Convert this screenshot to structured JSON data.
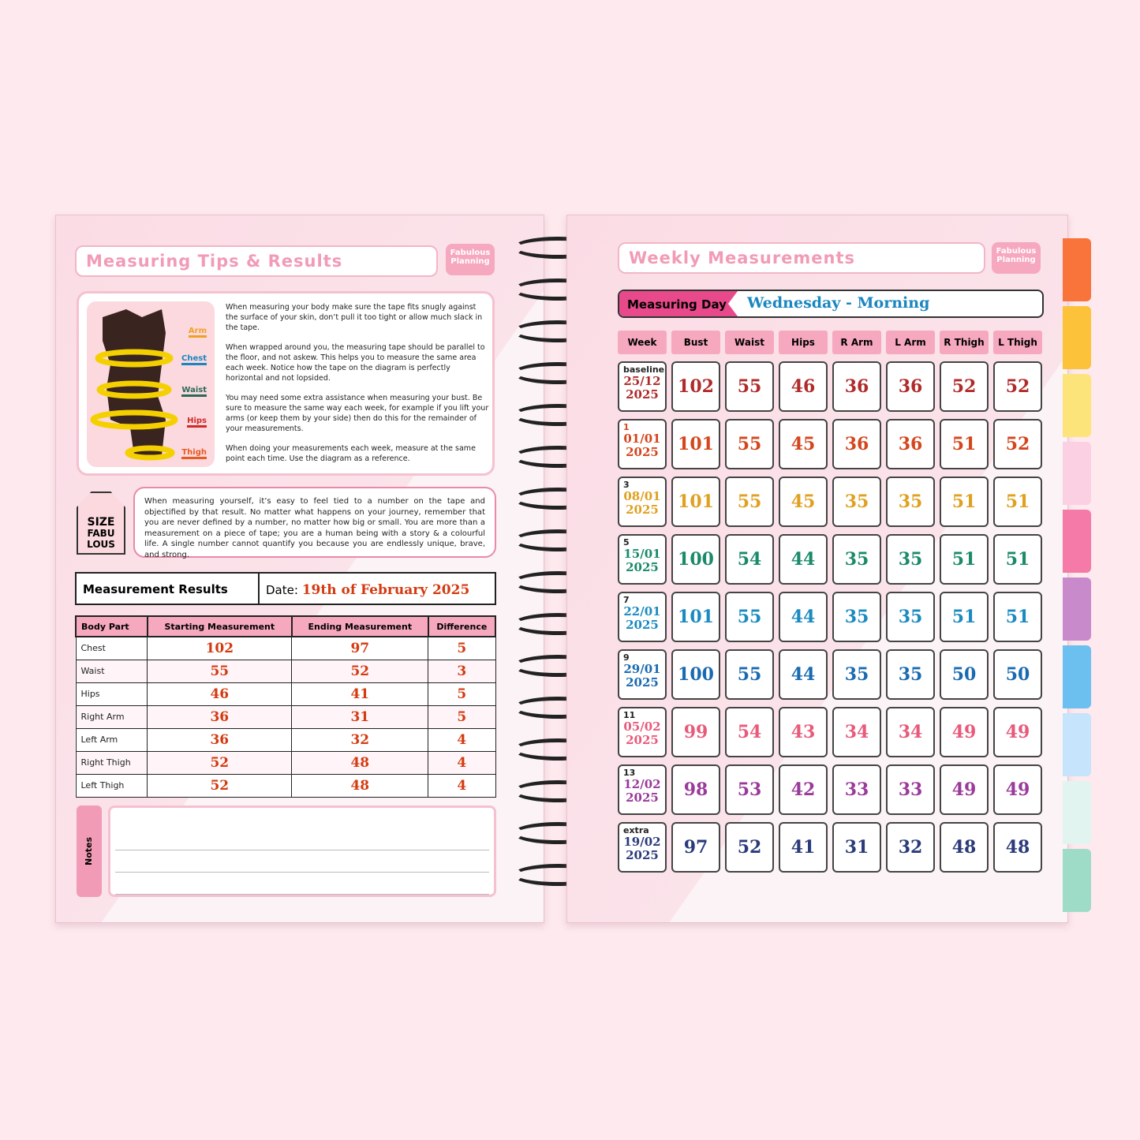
{
  "left": {
    "title": "Measuring Tips & Results",
    "logo": "Fabulous Planning",
    "figure_labels": [
      "Arm",
      "Chest",
      "Waist",
      "Hips",
      "Thigh"
    ],
    "figure_label_colors": [
      "#f0a020",
      "#1a86c0",
      "#2a6a5a",
      "#d02a2a",
      "#e85a20"
    ],
    "tips": [
      "When measuring your body make sure the tape fits snugly against the surface of your skin, don’t pull it too tight or allow much slack in the tape.",
      "When wrapped around you, the measuring tape should be parallel to the floor, and not askew. This helps you to measure the same area each week. Notice how the tape on the diagram is perfectly horizontal and not lopsided.",
      "You may need some extra assistance when measuring your bust. Be sure to measure the same way each week, for example if you lift your arms (or keep them by your side) then do this for the remainder of your measurements.",
      "When doing your measurements each week, measure at the same point each time. Use the diagram as a reference."
    ],
    "tag": {
      "line1": "SIZE",
      "line2": "FABU",
      "line3": "LOUS"
    },
    "quote": "When measuring yourself, it’s easy to feel tied to a number on the tape and objectified by that result. No matter what happens on your journey, remember that you are never defined by a number, no matter how big or small. You are more than a measurement on a piece of tape; you are a human being with a story & a colourful life. A single number cannot quantify you because you are endlessly unique, brave, and strong.",
    "results": {
      "label": "Measurement Results",
      "date_label": "Date:",
      "date_value": "19th of February 2025"
    },
    "table": {
      "headers": [
        "Body Part",
        "Starting Measurement",
        "Ending Measurement",
        "Difference"
      ],
      "rows": [
        [
          "Chest",
          "102",
          "97",
          "5"
        ],
        [
          "Waist",
          "55",
          "52",
          "3"
        ],
        [
          "Hips",
          "46",
          "41",
          "5"
        ],
        [
          "Right Arm",
          "36",
          "31",
          "5"
        ],
        [
          "Left Arm",
          "36",
          "32",
          "4"
        ],
        [
          "Right Thigh",
          "52",
          "48",
          "4"
        ],
        [
          "Left Thigh",
          "52",
          "48",
          "4"
        ]
      ]
    },
    "notes_label": "Notes"
  },
  "right": {
    "title": "Weekly Measurements",
    "logo": "Fabulous Planning",
    "measuring_day_label": "Measuring Day",
    "measuring_day_value": "Wednesday - Morning",
    "headers": [
      "Week",
      "Bust",
      "Waist",
      "Hips",
      "R Arm",
      "L Arm",
      "R Thigh",
      "L Thigh"
    ],
    "rows": [
      {
        "week": "baseline",
        "date": "25/12",
        "year": "2025",
        "values": [
          "102",
          "55",
          "46",
          "36",
          "36",
          "52",
          "52"
        ],
        "color": "#b02a2a"
      },
      {
        "week": "1",
        "date": "01/01",
        "year": "2025",
        "values": [
          "101",
          "55",
          "45",
          "36",
          "36",
          "51",
          "52"
        ],
        "color": "#d4461c"
      },
      {
        "week": "3",
        "date": "08/01",
        "year": "2025",
        "values": [
          "101",
          "55",
          "45",
          "35",
          "35",
          "51",
          "51"
        ],
        "color": "#e0a020"
      },
      {
        "week": "5",
        "date": "15/01",
        "year": "2025",
        "values": [
          "100",
          "54",
          "44",
          "35",
          "35",
          "51",
          "51"
        ],
        "color": "#1a8a6a"
      },
      {
        "week": "7",
        "date": "22/01",
        "year": "2025",
        "values": [
          "101",
          "55",
          "44",
          "35",
          "35",
          "51",
          "51"
        ],
        "color": "#1a8ac0"
      },
      {
        "week": "9",
        "date": "29/01",
        "year": "2025",
        "values": [
          "100",
          "55",
          "44",
          "35",
          "35",
          "50",
          "50"
        ],
        "color": "#1a6ab0"
      },
      {
        "week": "11",
        "date": "05/02",
        "year": "2025",
        "values": [
          "99",
          "54",
          "43",
          "34",
          "34",
          "49",
          "49"
        ],
        "color": "#e85a7a"
      },
      {
        "week": "13",
        "date": "12/02",
        "year": "2025",
        "values": [
          "98",
          "53",
          "42",
          "33",
          "33",
          "49",
          "49"
        ],
        "color": "#9a3a9a"
      },
      {
        "week": "extra",
        "date": "19/02",
        "year": "2025",
        "values": [
          "97",
          "52",
          "41",
          "31",
          "32",
          "48",
          "48"
        ],
        "color": "#2a3a7a"
      }
    ],
    "tab_colors": [
      "#f8743a",
      "#fcc33a",
      "#fde47a",
      "#fbd0e2",
      "#f57aa8",
      "#c98acb",
      "#6cc0f0",
      "#c6e4fb",
      "#e2f4ef",
      "#9fdcc8"
    ]
  }
}
